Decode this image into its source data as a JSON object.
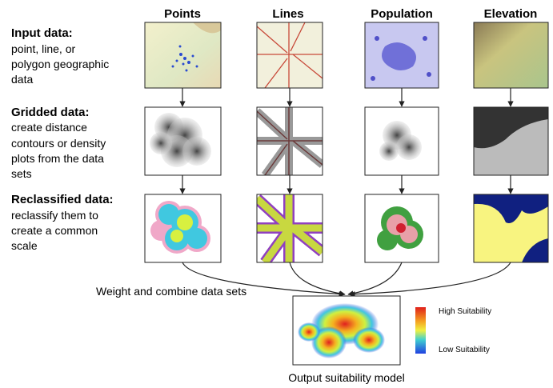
{
  "columns": [
    {
      "header": "Points"
    },
    {
      "header": "Lines"
    },
    {
      "header": "Population"
    },
    {
      "header": "Elevation"
    }
  ],
  "rows": [
    {
      "title": "Input data:",
      "lines": [
        "point, line, or",
        "polygon geographic",
        "data"
      ]
    },
    {
      "title": "Gridded data:",
      "lines": [
        "create distance",
        "contours or density",
        "plots from the data",
        "sets"
      ]
    },
    {
      "title": "Reclassified data:",
      "lines": [
        "reclassify them to",
        "create a common",
        "scale"
      ]
    }
  ],
  "combine_label": "Weight and combine data sets",
  "output": {
    "label": "Output suitability model",
    "legend_high": "High Suitability",
    "legend_low": "Low Suitability"
  }
}
